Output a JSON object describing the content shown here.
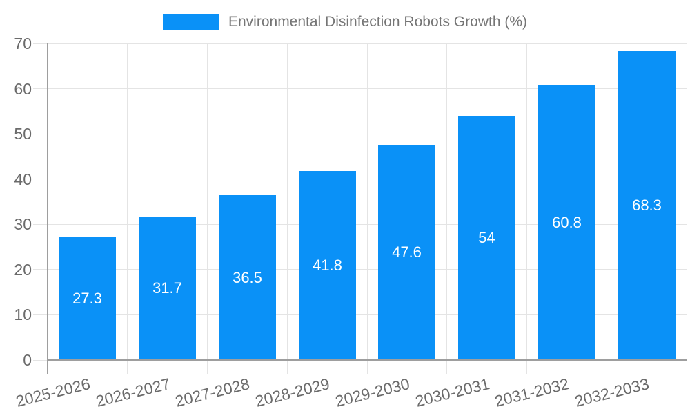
{
  "legend": {
    "label": "Environmental Disinfection Robots Growth (%)"
  },
  "colors": {
    "bar": "#0a91f7",
    "grid": "#e4e4e4",
    "axis": "#9e9e9e",
    "tick_text": "#6b6b6b",
    "legend_text": "#757575",
    "bar_label": "#ffffff",
    "background": "#ffffff"
  },
  "chart_data": {
    "type": "bar",
    "title": "Environmental Disinfection Robots Growth (%)",
    "categories": [
      "2025-2026",
      "2026-2027",
      "2027-2028",
      "2028-2029",
      "2029-2030",
      "2030-2031",
      "2031-2032",
      "2032-2033"
    ],
    "values": [
      27.3,
      31.7,
      36.5,
      41.8,
      47.6,
      54,
      60.8,
      68.3
    ],
    "value_labels": [
      "27.3",
      "31.7",
      "36.5",
      "41.8",
      "47.6",
      "54",
      "60.8",
      "68.3"
    ],
    "xlabel": "",
    "ylabel": "",
    "ylim": [
      0,
      70
    ],
    "ytick_step": 10,
    "yticks": [
      0,
      10,
      20,
      30,
      40,
      50,
      60,
      70
    ],
    "grid": true,
    "legend_position": "top",
    "bar_value_labels_inside": true,
    "x_tick_label_rotation_deg": -14
  }
}
